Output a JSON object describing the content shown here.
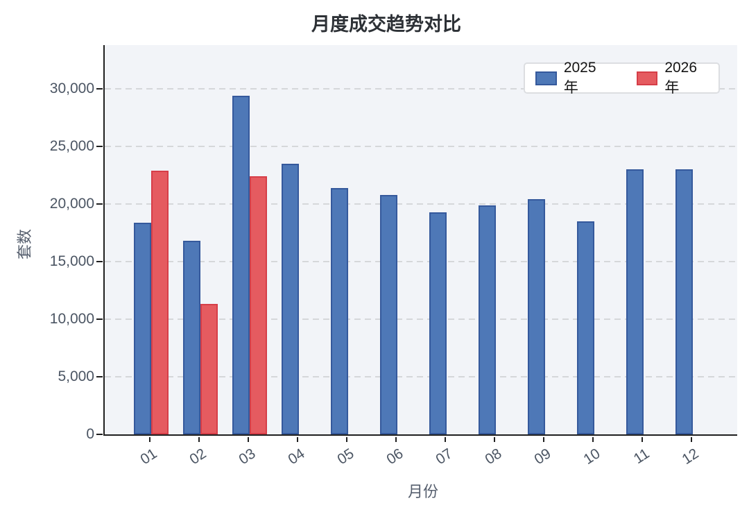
{
  "chart_data": {
    "type": "bar",
    "title": "月度成交趋势对比",
    "xlabel": "月份",
    "ylabel": "套数",
    "categories": [
      "01",
      "02",
      "03",
      "04",
      "05",
      "06",
      "07",
      "08",
      "09",
      "10",
      "11",
      "12"
    ],
    "series": [
      {
        "name": "2025年",
        "color": "#4e78b7",
        "border_color": "#35599c",
        "values": [
          18400,
          16800,
          29400,
          23500,
          21400,
          20800,
          19300,
          19900,
          20400,
          18500,
          23000,
          23000
        ]
      },
      {
        "name": "2026年",
        "color": "#e55b60",
        "border_color": "#d63e48",
        "values": [
          22900,
          11300,
          22400,
          null,
          null,
          null,
          null,
          null,
          null,
          null,
          null,
          null
        ]
      }
    ],
    "ylim": [
      0,
      33900
    ],
    "yticks": [
      {
        "value": 0,
        "label": "0"
      },
      {
        "value": 5000,
        "label": "5,000"
      },
      {
        "value": 10000,
        "label": "10,000"
      },
      {
        "value": 15000,
        "label": "15,000"
      },
      {
        "value": 20000,
        "label": "20,000"
      },
      {
        "value": 25000,
        "label": "25,000"
      },
      {
        "value": 30000,
        "label": "30,000"
      }
    ],
    "grid": {
      "horizontal": true,
      "style": "dashed",
      "color": "#d5d7da"
    },
    "legend_position": "top-right",
    "plot_background": "#f2f4f8",
    "page_background": "#ffffff"
  }
}
